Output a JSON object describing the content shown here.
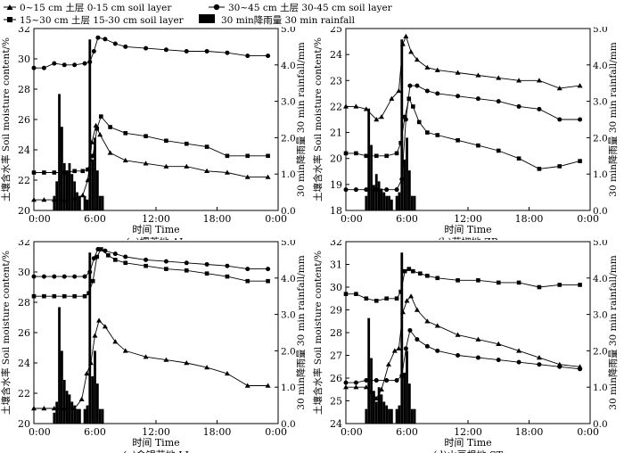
{
  "legend": {
    "s1": "0~15 cm 土层 0-15 cm soil layer",
    "s2": "30~45 cm 土层 30-45 cm soil layer",
    "s3": "15~30 cm 土层 15-30 cm soil layer",
    "rain": "30 min降雨量 30 min rainfall"
  },
  "axis": {
    "ylabel": "土壤含水率 Soil moisture content/%",
    "y2label": "30 min降雨量 30 min rainfall/mm",
    "xlabel": "时间 Time",
    "xticks": [
      "0:00",
      "6:00",
      "12:00",
      "18:00",
      "0:00"
    ],
    "rain_ticks": [
      "0.0",
      "1.0",
      "2.0",
      "3.0",
      "4.0",
      "5.0"
    ]
  },
  "rain_times": [
    2.0,
    2.25,
    2.5,
    2.75,
    3.0,
    3.25,
    3.5,
    3.75,
    4.0,
    4.25,
    4.5,
    5.0,
    5.25,
    5.5,
    5.75,
    6.0,
    6.25,
    6.5,
    6.75
  ],
  "chart_data": [
    {
      "type": "line",
      "title": "(a)撂荒地 AL",
      "ylim": [
        20,
        32
      ],
      "yticks": [
        20,
        22,
        24,
        26,
        28,
        30,
        32
      ],
      "y2lim": [
        0,
        5
      ],
      "xlabel": "时间 Time",
      "ylabel": "土壤含水率 Soil moisture content/%",
      "y2label": "30 min降雨量 30 min rainfall/mm",
      "series": [
        {
          "name": "0~15 cm 土层 0-15 cm soil layer",
          "marker": "triangle",
          "x": [
            0,
            1,
            2,
            3,
            4,
            4.8,
            5.3,
            5.7,
            6.1,
            6.5,
            7.5,
            9,
            11,
            13,
            15,
            17,
            19,
            21,
            23
          ],
          "y": [
            20.7,
            20.7,
            20.7,
            20.7,
            20.8,
            21.0,
            22.0,
            24.5,
            25.6,
            25.0,
            23.8,
            23.3,
            23.1,
            22.9,
            22.9,
            22.6,
            22.5,
            22.2,
            22.2
          ]
        },
        {
          "name": "15~30 cm 土层 15-30 cm soil layer",
          "marker": "square",
          "x": [
            0,
            1,
            2,
            3,
            4,
            4.8,
            5.3,
            5.8,
            6.2,
            6.6,
            7.5,
            9,
            11,
            13,
            15,
            17,
            19,
            21,
            23
          ],
          "y": [
            22.5,
            22.5,
            22.5,
            22.5,
            22.6,
            22.6,
            22.7,
            23.6,
            25.4,
            26.2,
            25.5,
            25.1,
            24.9,
            24.6,
            24.4,
            24.2,
            23.6,
            23.6,
            23.6
          ]
        },
        {
          "name": "30~45 cm 土层 30-45 cm soil layer",
          "marker": "circle",
          "x": [
            0,
            1,
            2,
            3,
            4,
            5,
            5.5,
            5.9,
            6.3,
            7,
            8,
            9,
            11,
            13,
            15,
            17,
            19,
            21,
            23
          ],
          "y": [
            29.4,
            29.4,
            29.7,
            29.6,
            29.6,
            29.7,
            29.8,
            30.5,
            31.4,
            31.3,
            31.0,
            30.8,
            30.7,
            30.6,
            30.5,
            30.5,
            30.4,
            30.2,
            30.2
          ]
        }
      ],
      "rainfall": [
        0.4,
        0.8,
        3.2,
        2.3,
        1.3,
        1.1,
        1.3,
        1.0,
        0.8,
        0.5,
        0.4,
        0.4,
        0.3,
        4.7,
        1.4,
        2.0,
        1.1,
        0.4,
        0.4
      ]
    },
    {
      "type": "line",
      "title": "(b)花椒地 ZB",
      "ylim": [
        18,
        25
      ],
      "yticks": [
        18,
        19,
        20,
        21,
        22,
        23,
        24,
        25
      ],
      "y2lim": [
        0,
        5
      ],
      "xlabel": "时间 Time",
      "ylabel": "土壤含水率 Soil moisture content/%",
      "y2label": "30 min降雨量 30 min rainfall/mm",
      "series": [
        {
          "name": "0~15 cm 土层 0-15 cm soil layer",
          "marker": "triangle",
          "x": [
            0,
            1,
            2,
            3,
            3.5,
            4.5,
            5.2,
            5.6,
            5.9,
            6.4,
            7,
            8,
            9,
            11,
            13,
            15,
            17,
            19,
            21,
            23
          ],
          "y": [
            22.0,
            22.0,
            21.9,
            21.5,
            21.6,
            22.3,
            22.6,
            24.4,
            24.7,
            24.1,
            23.8,
            23.5,
            23.4,
            23.3,
            23.2,
            23.1,
            23.0,
            23.0,
            22.7,
            22.8
          ]
        },
        {
          "name": "15~30 cm 土层 15-30 cm soil layer",
          "marker": "square",
          "x": [
            0,
            1,
            2,
            3,
            4,
            5,
            5.4,
            5.8,
            6.2,
            6.6,
            7.2,
            8,
            9,
            11,
            13,
            15,
            17,
            19,
            21,
            23
          ],
          "y": [
            20.2,
            20.2,
            20.1,
            20.1,
            20.1,
            20.2,
            20.6,
            21.6,
            22.3,
            22.0,
            21.4,
            21.0,
            20.9,
            20.7,
            20.5,
            20.3,
            20.0,
            19.6,
            19.7,
            19.9
          ]
        },
        {
          "name": "30~45 cm 土层 30-45 cm soil layer",
          "marker": "circle",
          "x": [
            0,
            1,
            2,
            3,
            4,
            5,
            5.5,
            5.9,
            6.3,
            7,
            8,
            9,
            11,
            13,
            15,
            17,
            19,
            21,
            23
          ],
          "y": [
            18.8,
            18.8,
            18.8,
            18.8,
            18.8,
            18.8,
            19.2,
            21.5,
            22.8,
            22.8,
            22.6,
            22.5,
            22.4,
            22.3,
            22.2,
            22.0,
            21.9,
            21.5,
            21.5
          ]
        }
      ],
      "rainfall": [
        0.4,
        2.8,
        1.8,
        0.7,
        1.0,
        0.8,
        0.6,
        0.5,
        0.4,
        0.4,
        0.3,
        0.4,
        0.5,
        4.7,
        1.4,
        2.0,
        1.1,
        0.4,
        0.4
      ]
    },
    {
      "type": "line",
      "title": "(c)金银花地 LJ",
      "ylim": [
        20,
        32
      ],
      "yticks": [
        20,
        22,
        24,
        26,
        28,
        30,
        32
      ],
      "y2lim": [
        0,
        5
      ],
      "xlabel": "时间 Time",
      "ylabel": "土壤含水率 Soil moisture content/%",
      "y2label": "30 min降雨量 30 min rainfall/mm",
      "series": [
        {
          "name": "0~15 cm 土层 0-15 cm soil layer",
          "marker": "triangle",
          "x": [
            0,
            1,
            2,
            3,
            4,
            4.7,
            5.2,
            5.6,
            6.0,
            6.4,
            7,
            8,
            9,
            11,
            13,
            15,
            17,
            19,
            21,
            23
          ],
          "y": [
            21.0,
            21.0,
            21.0,
            21.0,
            21.0,
            21.6,
            23.3,
            24.0,
            25.8,
            26.8,
            26.4,
            25.4,
            24.8,
            24.4,
            24.2,
            24.0,
            23.7,
            23.3,
            22.5,
            22.5
          ]
        },
        {
          "name": "15~30 cm 土层 15-30 cm soil layer",
          "marker": "square",
          "x": [
            0,
            1,
            2,
            3,
            4,
            5,
            5.4,
            5.8,
            6.2,
            6.6,
            7.3,
            8,
            9,
            11,
            13,
            15,
            17,
            19,
            21,
            23
          ],
          "y": [
            28.4,
            28.4,
            28.4,
            28.4,
            28.4,
            28.4,
            28.6,
            29.4,
            31.0,
            31.5,
            31.1,
            30.8,
            30.6,
            30.4,
            30.2,
            30.1,
            29.9,
            29.7,
            29.4,
            29.4
          ]
        },
        {
          "name": "30~45 cm 土层 30-45 cm soil layer",
          "marker": "circle",
          "x": [
            0,
            1,
            2,
            3,
            4,
            5,
            5.5,
            5.9,
            6.3,
            7,
            8,
            9,
            11,
            13,
            15,
            17,
            19,
            21,
            23
          ],
          "y": [
            29.7,
            29.7,
            29.7,
            29.7,
            29.7,
            29.7,
            30.0,
            30.9,
            31.5,
            31.4,
            31.2,
            31.0,
            30.8,
            30.7,
            30.6,
            30.5,
            30.4,
            30.2,
            30.2
          ]
        }
      ],
      "rainfall": [
        0.3,
        0.6,
        3.2,
        2.0,
        1.2,
        0.9,
        0.8,
        0.6,
        0.5,
        0.4,
        0.4,
        0.4,
        0.5,
        4.7,
        1.3,
        2.0,
        1.1,
        0.4,
        0.4
      ]
    },
    {
      "type": "line",
      "title": "(d)山豆根地 ST",
      "ylim": [
        24,
        32
      ],
      "yticks": [
        24,
        25,
        26,
        27,
        28,
        29,
        30,
        31,
        32
      ],
      "y2lim": [
        0,
        5
      ],
      "xlabel": "时间 Time",
      "ylabel": "土壤含水率 Soil moisture content/%",
      "y2label": "30 min降雨量 30 min rainfall/mm",
      "series": [
        {
          "name": "0~15 cm 土层 0-15 cm soil layer",
          "marker": "triangle",
          "x": [
            0,
            1,
            2,
            2.5,
            3,
            3.5,
            4.2,
            4.8,
            5.2,
            5.6,
            6.0,
            6.4,
            7,
            8,
            9,
            11,
            13,
            15,
            17,
            19,
            21,
            23
          ],
          "y": [
            25.6,
            25.6,
            25.6,
            25.4,
            25.1,
            25.5,
            26.6,
            27.2,
            27.3,
            28.9,
            29.4,
            29.6,
            29.0,
            28.5,
            28.3,
            27.9,
            27.7,
            27.5,
            27.2,
            26.9,
            26.6,
            26.5
          ]
        },
        {
          "name": "15~30 cm 土层 15-30 cm soil layer",
          "marker": "square",
          "x": [
            0,
            1,
            2,
            3,
            4,
            5,
            5.4,
            5.8,
            6.2,
            6.6,
            7.3,
            8,
            9,
            11,
            13,
            15,
            17,
            19,
            21,
            23
          ],
          "y": [
            29.7,
            29.7,
            29.5,
            29.4,
            29.5,
            29.5,
            29.8,
            30.7,
            30.8,
            30.7,
            30.6,
            30.5,
            30.4,
            30.3,
            30.3,
            30.2,
            30.2,
            30.0,
            30.1,
            30.1
          ]
        },
        {
          "name": "30~45 cm 土层 30-45 cm soil layer",
          "marker": "circle",
          "x": [
            0,
            1,
            2,
            3,
            4,
            5,
            5.5,
            5.9,
            6.3,
            7,
            8,
            9,
            11,
            13,
            15,
            17,
            19,
            21,
            23
          ],
          "y": [
            25.8,
            25.8,
            25.9,
            25.9,
            25.9,
            25.9,
            26.1,
            27.3,
            28.1,
            27.7,
            27.4,
            27.2,
            27.0,
            26.9,
            26.8,
            26.7,
            26.6,
            26.5,
            26.4
          ]
        }
      ],
      "rainfall": [
        0.4,
        2.9,
        1.8,
        0.9,
        0.6,
        1.0,
        0.8,
        0.6,
        0.5,
        0.4,
        0.4,
        0.4,
        0.5,
        4.7,
        1.4,
        2.0,
        1.1,
        0.4,
        0.4
      ]
    }
  ]
}
